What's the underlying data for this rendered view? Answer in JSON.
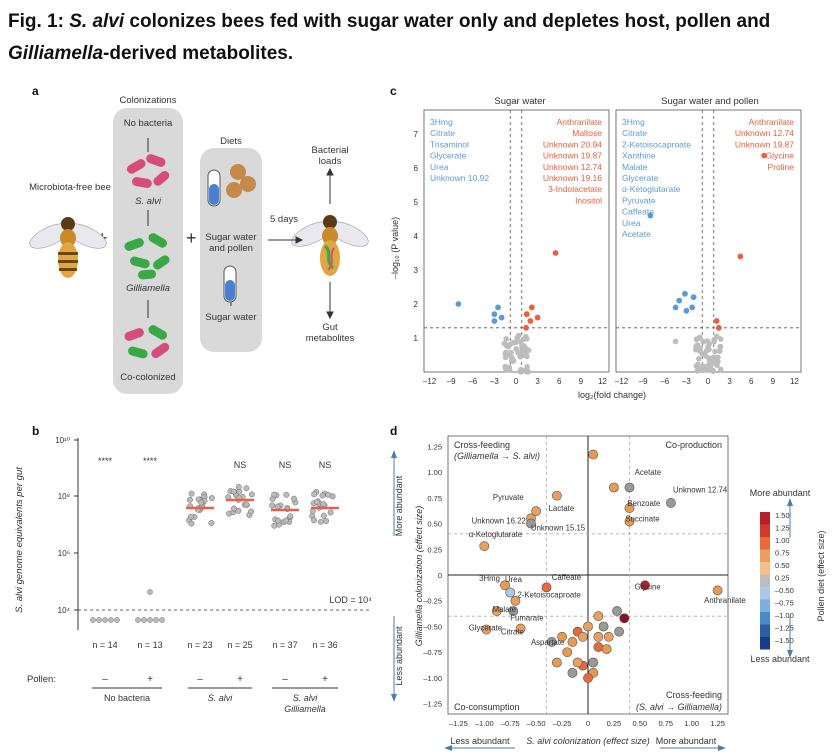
{
  "figure": {
    "title_prefix": "Fig. 1: ",
    "title_species": "S. alvi",
    "title_rest_line1": " colonizes bees fed with sugar water only and depletes host, pollen and",
    "title_genus": "Gilliamella",
    "title_rest_line2": "-derived metabolites."
  },
  "panel_a": {
    "letter": "a",
    "colonizations_header": "Colonizations",
    "diets_header": "Diets",
    "microbiota_free_bee": "Microbiota-free bee",
    "no_bacteria": "No bacteria",
    "s_alvi": "S. alvi",
    "gilliamella": "Gilliamella",
    "co_colonized": "Co-colonized",
    "sugar_water_pollen": "Sugar water and pollen",
    "sugar_water": "Sugar water",
    "duration": "5 days",
    "bacterial_loads": "Bacterial loads",
    "gut_metabolites": "Gut metabolites",
    "plus": "+"
  },
  "panel_b": {
    "letter": "b",
    "ylabel": "S. alvi genome equivalents per gut",
    "lod_label": "LOD = 10⁴",
    "pollen_label": "Pollen:",
    "groups": [
      {
        "n": "n = 14",
        "pollen": "–",
        "sig": "****"
      },
      {
        "n": "n = 13",
        "pollen": "+",
        "sig": "****"
      },
      {
        "n": "n = 23",
        "pollen": "–",
        "sig": ""
      },
      {
        "n": "n = 25",
        "pollen": "+",
        "sig": "NS"
      },
      {
        "n": "n = 37",
        "pollen": "–",
        "sig": "NS"
      },
      {
        "n": "n = 36",
        "pollen": "+",
        "sig": "NS"
      }
    ],
    "group_labels": [
      "No bacteria",
      "S. alvi",
      "S. alvi Gilliamella"
    ],
    "yticks": [
      "10¹⁰",
      "10⁸",
      "10⁶",
      "10⁴"
    ]
  },
  "panel_c": {
    "letter": "c",
    "ylabel": "–log₁₀ (P value)",
    "xlabel": "log₂(fold change)",
    "left_title": "Sugar water",
    "right_title": "Sugar water and pollen",
    "left_blue": [
      "3Hmg",
      "Citrate",
      "Trisaminol",
      "Glycerate",
      "Urea",
      "Unknown 10.92"
    ],
    "left_red": [
      "Anthranilate",
      "Maltose",
      "Unknown 20.94",
      "Unknown 19.87",
      "Unknown 12.74",
      "Unknown 19.16",
      "3-Indolacetate",
      "Inositol"
    ],
    "right_blue": [
      "3Hmg",
      "Citrate",
      "2-Ketoisocaproate",
      "Xanthine",
      "Malate",
      "Glycerate",
      "α-Ketoglutarate",
      "Pyruvate",
      "Caffeate",
      "Urea",
      "Acetate"
    ],
    "right_red": [
      "Anthranilate",
      "Unknown 12.74",
      "Unknown 19.87",
      "Glycine",
      "Proline"
    ],
    "xticks": [
      "–12",
      "–9",
      "–6",
      "–3",
      "0",
      "3",
      "6",
      "9",
      "12"
    ],
    "yticks": [
      "1",
      "2",
      "3",
      "4",
      "5",
      "6",
      "7"
    ]
  },
  "panel_d": {
    "letter": "d",
    "ylabel": "Gilliamella colonization (effect size)",
    "xlabel": "S. alvi colonization (effect size)",
    "more_abundant_y": "More abundant",
    "less_abundant_y": "Less abundant",
    "less_abundant_x": "Less abundant",
    "more_abundant_x": "More abundant",
    "q_tl": "Cross-feeding",
    "q_tl_sub": "(Gilliamella → S. alvi)",
    "q_tr": "Co-production",
    "q_bl": "Co-consumption",
    "q_br": "Cross-feeding",
    "q_br_sub": "(S. alvi → Gilliamella)",
    "colorbar_title": "Pollen diet (effect size)",
    "colorbar_top": "More abundant",
    "colorbar_bottom": "Less abundant",
    "colorbar_ticks": [
      "1.50",
      "1.25",
      "1.00",
      "0.75",
      "0.50",
      "0.25",
      "–0.50",
      "–0.75",
      "–1.00",
      "–1.25",
      "–1.50"
    ],
    "xticks": [
      "–1.25",
      "–1.00",
      "–0.75",
      "–0.50",
      "–0.25",
      "0",
      "0.25",
      "0.50",
      "0.75",
      "1.00",
      "1.25"
    ],
    "yticks": [
      "1.25",
      "1.00",
      "0.75",
      "0.50",
      "0.25",
      "0",
      "–0.25",
      "–0.50",
      "–0.75",
      "–1.00",
      "–1.25"
    ],
    "labels": [
      "Acetate",
      "Unknown 12.74",
      "Benzoate",
      "Succinate",
      "Pyruvate",
      "Lactate",
      "Unknown 16.22",
      "Unknown 15.15",
      "α-Ketoglutarate",
      "3Hmg",
      "Urea",
      "Caffeate",
      "2-Ketoisocaproate",
      "Malate",
      "Fumarate",
      "Glycerate",
      "Citrate",
      "Aspartate",
      "Glycine",
      "Anthranilate"
    ]
  }
}
